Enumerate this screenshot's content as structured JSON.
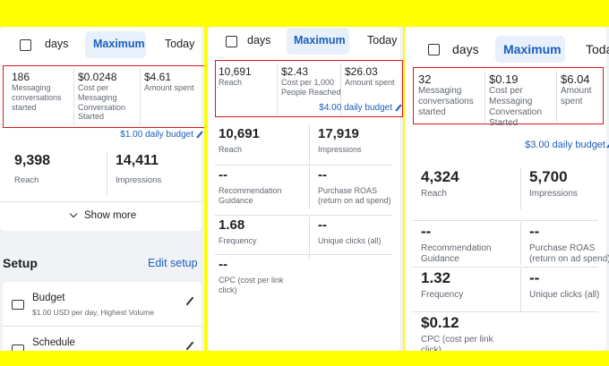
{
  "panels": [
    {
      "tabs": [
        "days",
        "Maximum",
        "Today"
      ],
      "highlight": [
        {
          "value": "186",
          "label": "Messaging conversations started"
        },
        {
          "value": "$0.0248",
          "label": "Cost per Messaging Conversation Started"
        },
        {
          "value": "$4.61",
          "label": "Amount spent"
        }
      ],
      "budget": "$1.00 daily budget",
      "stats": [
        {
          "value": "9,398",
          "label": "Reach"
        },
        {
          "value": "14,411",
          "label": "Impressions"
        }
      ],
      "show_more": "Show more",
      "setup": {
        "title": "Setup",
        "edit": "Edit setup",
        "items": [
          {
            "title": "Budget",
            "detail": "$1.00 USD per day, Highest Volume"
          },
          {
            "title": "Schedule"
          }
        ]
      }
    },
    {
      "tabs": [
        "days",
        "Maximum",
        "Today"
      ],
      "highlight": [
        {
          "value": "10,691",
          "label": "Reach"
        },
        {
          "value": "$2.43",
          "label": "Cost per 1,000 People Reached"
        },
        {
          "value": "$26.03",
          "label": "Amount spent"
        }
      ],
      "budget": "$4.00 daily budget",
      "stats": [
        {
          "value": "10,691",
          "label": "Reach"
        },
        {
          "value": "17,919",
          "label": "Impressions"
        },
        {
          "value": "--",
          "label": "Recommendation Guidance"
        },
        {
          "value": "--",
          "label": "Purchase ROAS (return on ad spend)"
        },
        {
          "value": "1.68",
          "label": "Frequency"
        },
        {
          "value": "--",
          "label": "Unique clicks (all)"
        },
        {
          "value": "--",
          "label": "CPC (cost per link click)"
        }
      ]
    },
    {
      "tabs": [
        "days",
        "Maximum",
        "Toda"
      ],
      "highlight": [
        {
          "value": "32",
          "label": "Messaging conversations started"
        },
        {
          "value": "$0.19",
          "label": "Cost per Messaging Conversation Started"
        },
        {
          "value": "$6.04",
          "label": "Amount spent"
        }
      ],
      "budget": "$3.00 daily budget",
      "stats": [
        {
          "value": "4,324",
          "label": "Reach"
        },
        {
          "value": "5,700",
          "label": "Impressions"
        },
        {
          "value": "--",
          "label": "Recommendation Guidance"
        },
        {
          "value": "--",
          "label": "Purchase ROAS (return on ad spend)"
        },
        {
          "value": "1.32",
          "label": "Frequency"
        },
        {
          "value": "--",
          "label": "Unique clicks (all)"
        },
        {
          "value": "$0.12",
          "label": "CPC (cost per link click)"
        }
      ]
    }
  ]
}
